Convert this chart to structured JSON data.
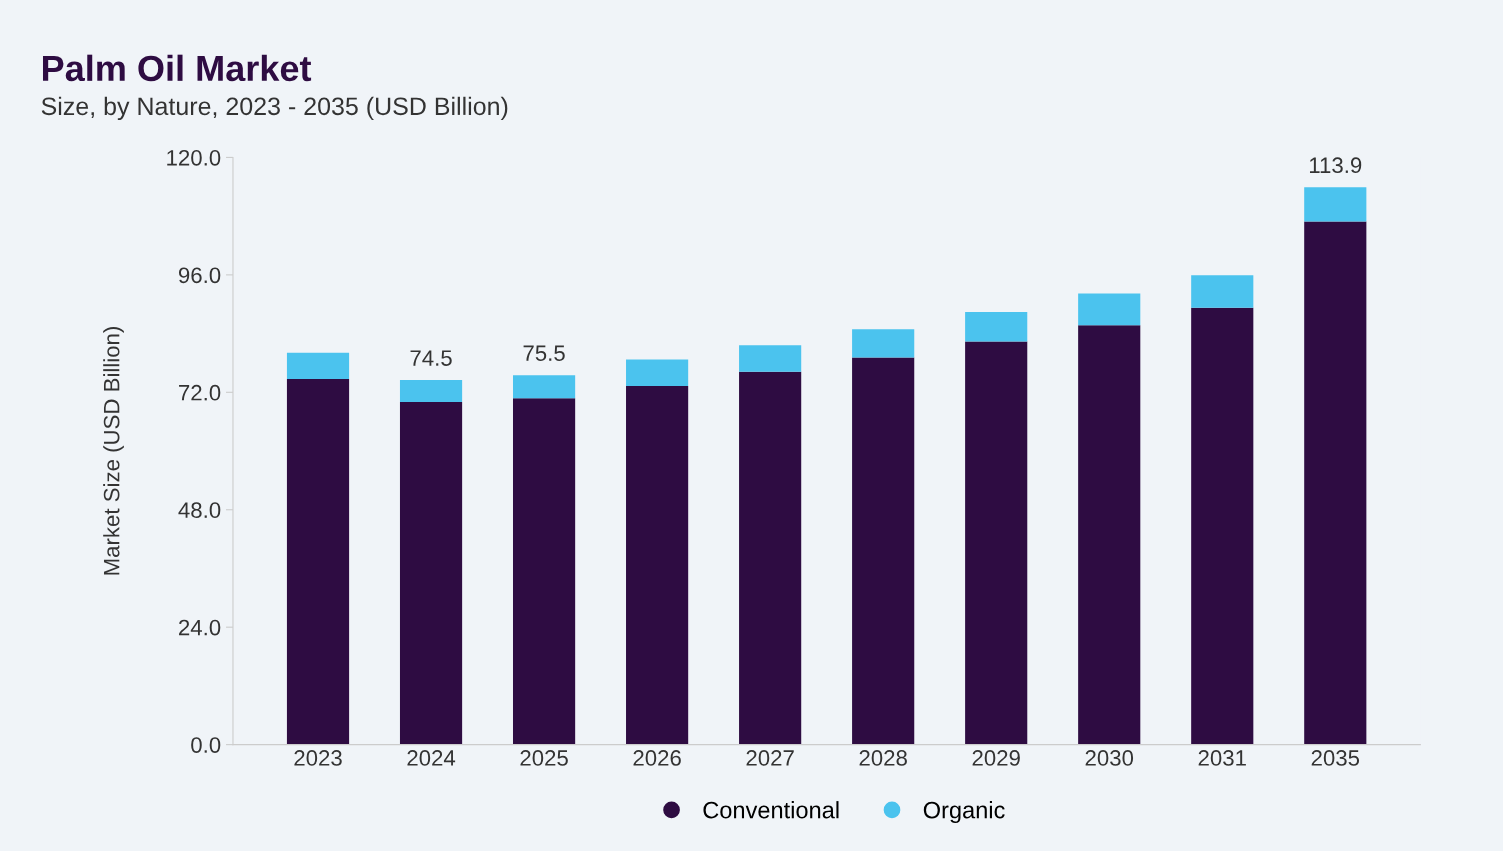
{
  "chart_data": {
    "type": "bar",
    "stacked": true,
    "title": "Palm Oil Market",
    "subtitle": "Size, by Nature, 2023 - 2035 (USD Billion)",
    "ylabel": "Market Size (USD Billion)",
    "categories": [
      "2023",
      "2024",
      "2025",
      "2026",
      "2027",
      "2028",
      "2029",
      "2030",
      "2031",
      "2035"
    ],
    "series": [
      {
        "name": "Conventional",
        "color": "#2e0c42",
        "values": [
          74.7,
          70.0,
          70.8,
          73.3,
          76.2,
          79.1,
          82.4,
          85.7,
          89.3,
          106.9
        ]
      },
      {
        "name": "Organic",
        "color": "#4bc3ee",
        "values": [
          5.4,
          4.5,
          4.7,
          5.4,
          5.4,
          5.8,
          6.0,
          6.5,
          6.6,
          7.0
        ]
      }
    ],
    "totals": [
      null,
      "74.5",
      "75.5",
      null,
      null,
      null,
      null,
      null,
      null,
      "113.9"
    ],
    "ylim": [
      0,
      120
    ],
    "yticks": [
      {
        "value": 0,
        "label": "0.0"
      },
      {
        "value": 24,
        "label": "24.0"
      },
      {
        "value": 48,
        "label": "48.0"
      },
      {
        "value": 72,
        "label": "72.0"
      },
      {
        "value": 96,
        "label": "96.0"
      },
      {
        "value": 120,
        "label": "120.0"
      }
    ],
    "grid": false,
    "legend": "bottom",
    "marker": "circle"
  }
}
